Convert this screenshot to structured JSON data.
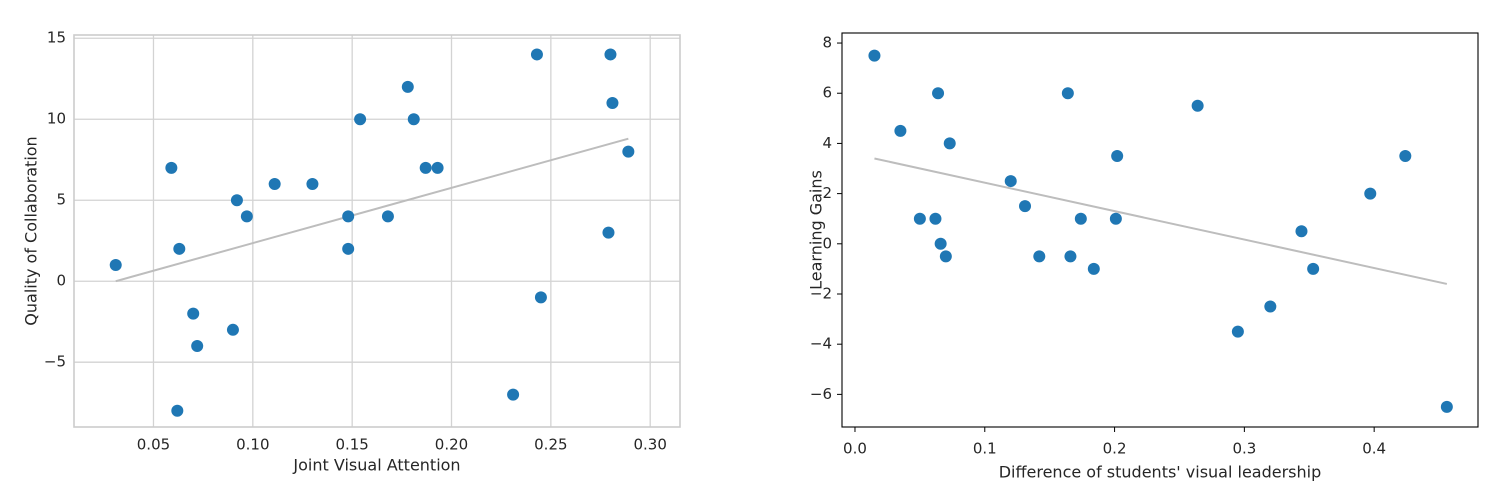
{
  "chart_data": [
    {
      "type": "scatter",
      "style": "grid",
      "xlabel": "Joint Visual Attention",
      "ylabel": "Quality of Collaboration",
      "xlim": [
        0.01,
        0.315
      ],
      "ylim": [
        -9.0,
        15.2
      ],
      "grid": true,
      "xticks": [
        0.05,
        0.1,
        0.15,
        0.2,
        0.25,
        0.3
      ],
      "xtick_labels": [
        "0.05",
        "0.10",
        "0.15",
        "0.20",
        "0.25",
        "0.30"
      ],
      "yticks": [
        -5,
        0,
        5,
        10,
        15
      ],
      "ytick_labels": [
        "−5",
        "0",
        "5",
        "10",
        "15"
      ],
      "colors": {
        "points": "#1f77b4",
        "trend": "#bdbdbd",
        "grid": "#d3d3d3",
        "spine": "#cccccc"
      },
      "x": [
        0.031,
        0.059,
        0.062,
        0.063,
        0.07,
        0.072,
        0.09,
        0.092,
        0.097,
        0.111,
        0.13,
        0.148,
        0.148,
        0.154,
        0.168,
        0.178,
        0.181,
        0.187,
        0.193,
        0.231,
        0.243,
        0.245,
        0.279,
        0.28,
        0.281,
        0.289
      ],
      "y": [
        1,
        7,
        -8,
        2,
        -2,
        -4,
        -3,
        5,
        4,
        6,
        6,
        4,
        2,
        10,
        4,
        12,
        10,
        7,
        7,
        -7,
        14,
        -1,
        3,
        14,
        11,
        8
      ],
      "trendline": {
        "x": [
          0.031,
          0.289
        ],
        "y": [
          0.0,
          8.8
        ]
      }
    },
    {
      "type": "scatter",
      "style": "plain",
      "xlabel": "Difference of students' visual leadership",
      "ylabel": "Learning Gains",
      "xlim": [
        -0.01,
        0.48
      ],
      "ylim": [
        -7.3,
        8.4
      ],
      "grid": false,
      "xticks": [
        0.0,
        0.1,
        0.2,
        0.3,
        0.4
      ],
      "xtick_labels": [
        "0.0",
        "0.1",
        "0.2",
        "0.3",
        "0.4"
      ],
      "yticks": [
        -6,
        -4,
        -2,
        0,
        2,
        4,
        6,
        8
      ],
      "ytick_labels": [
        "−6",
        "−4",
        "−2",
        "0",
        "2",
        "4",
        "6",
        "8"
      ],
      "colors": {
        "points": "#1f77b4",
        "trend": "#bdbdbd",
        "spine": "#000000"
      },
      "x": [
        0.015,
        0.035,
        0.05,
        0.062,
        0.064,
        0.066,
        0.07,
        0.073,
        0.12,
        0.131,
        0.142,
        0.164,
        0.166,
        0.174,
        0.184,
        0.201,
        0.202,
        0.264,
        0.295,
        0.32,
        0.344,
        0.353,
        0.397,
        0.424,
        0.456
      ],
      "y": [
        7.5,
        4.5,
        1,
        1,
        6,
        0,
        -0.5,
        4,
        2.5,
        1.5,
        -0.5,
        6,
        -0.5,
        1,
        -1,
        1,
        3.5,
        5.5,
        -3.5,
        -2.5,
        0.5,
        -1,
        2,
        3.5,
        -6.5
      ],
      "trendline": {
        "x": [
          0.015,
          0.456
        ],
        "y": [
          3.4,
          -1.6
        ]
      }
    }
  ]
}
